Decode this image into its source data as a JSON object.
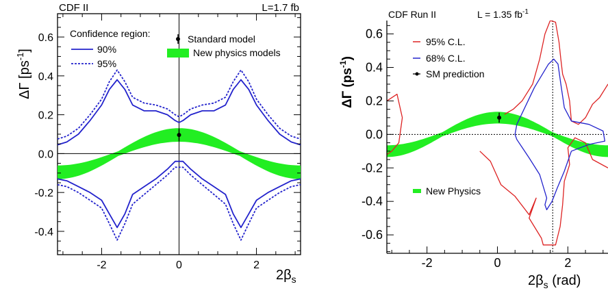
{
  "chart_data": [
    {
      "type": "line",
      "title": "CDF II",
      "luminosity": "L=1.7 fb",
      "xlabel": "2β",
      "xlabel_sub": "s",
      "ylabel": "ΔΓ [ps",
      "ylabel_sup": "-1",
      "ylabel_end": "]",
      "xlim": [
        -3.14,
        3.14
      ],
      "ylim": [
        -0.52,
        0.72
      ],
      "xticks": [
        -2,
        0,
        2
      ],
      "xtick_labels": [
        "-2",
        "0",
        "2"
      ],
      "yticks": [
        -0.4,
        -0.2,
        0.0,
        0.2,
        0.4,
        0.6
      ],
      "ytick_labels": [
        "-0.4",
        "-0.2",
        "0.0",
        "0.2",
        "0.4",
        "0.6"
      ],
      "legend": {
        "title": "Confidence region:",
        "items": [
          "90%",
          "95%"
        ],
        "extra_items": [
          "Standard model",
          "New physics models"
        ]
      },
      "sm_point": {
        "x": 0.0,
        "y": 0.096,
        "err": 0.03
      },
      "series": [
        {
          "name": "90%",
          "style": "solid",
          "color": "#2222cc",
          "x": [
            -3.14,
            -2.9,
            -2.6,
            -2.3,
            -2.0,
            -1.8,
            -1.6,
            -1.4,
            -1.2,
            -0.9,
            -0.6,
            -0.3,
            -0.1,
            0.0,
            0.1,
            0.3,
            0.6,
            0.9,
            1.2,
            1.4,
            1.6,
            1.8,
            2.0,
            2.3,
            2.6,
            2.9,
            3.14
          ],
          "upper": [
            0.045,
            0.06,
            0.1,
            0.17,
            0.25,
            0.33,
            0.38,
            0.33,
            0.25,
            0.22,
            0.22,
            0.2,
            0.17,
            0.16,
            0.17,
            0.2,
            0.22,
            0.22,
            0.25,
            0.33,
            0.38,
            0.33,
            0.25,
            0.17,
            0.1,
            0.06,
            0.045
          ],
          "lower": [
            -0.13,
            -0.14,
            -0.17,
            -0.2,
            -0.24,
            -0.31,
            -0.38,
            -0.31,
            -0.21,
            -0.17,
            -0.13,
            -0.08,
            -0.04,
            -0.04,
            -0.04,
            -0.08,
            -0.13,
            -0.17,
            -0.21,
            -0.31,
            -0.38,
            -0.31,
            -0.24,
            -0.2,
            -0.17,
            -0.14,
            -0.13
          ]
        },
        {
          "name": "95%",
          "style": "dotted",
          "color": "#2222cc",
          "x": [
            -3.14,
            -2.9,
            -2.6,
            -2.3,
            -2.0,
            -1.8,
            -1.6,
            -1.4,
            -1.2,
            -0.9,
            -0.6,
            -0.3,
            -0.1,
            0.0,
            0.1,
            0.3,
            0.6,
            0.9,
            1.2,
            1.4,
            1.6,
            1.8,
            2.0,
            2.3,
            2.6,
            2.9,
            3.14
          ],
          "upper": [
            0.075,
            0.09,
            0.13,
            0.2,
            0.28,
            0.37,
            0.43,
            0.37,
            0.29,
            0.26,
            0.25,
            0.23,
            0.2,
            0.19,
            0.2,
            0.23,
            0.25,
            0.26,
            0.29,
            0.37,
            0.43,
            0.37,
            0.28,
            0.2,
            0.13,
            0.09,
            0.075
          ],
          "lower": [
            -0.16,
            -0.17,
            -0.2,
            -0.24,
            -0.28,
            -0.36,
            -0.445,
            -0.36,
            -0.26,
            -0.21,
            -0.16,
            -0.11,
            -0.07,
            -0.07,
            -0.07,
            -0.11,
            -0.16,
            -0.21,
            -0.26,
            -0.36,
            -0.445,
            -0.36,
            -0.28,
            -0.24,
            -0.2,
            -0.17,
            -0.16
          ]
        }
      ],
      "band": {
        "name": "New physics models",
        "color": "#22ee22",
        "amplitude": 0.096,
        "halfwidth": 0.035
      }
    },
    {
      "type": "line",
      "title": "CDF Run II",
      "luminosity": "L = 1.35 fb",
      "luminosity_sup": "-1",
      "xlabel": "2β",
      "xlabel_sub": "s",
      "xlabel_end": " (rad)",
      "ylabel": "ΔΓ (ps",
      "ylabel_sup": "-1",
      "ylabel_end": ")",
      "xlim": [
        -3.14,
        3.14
      ],
      "ylim": [
        -0.71,
        0.68
      ],
      "xticks": [
        -2,
        0,
        2
      ],
      "xtick_labels": [
        "-2",
        "0",
        "2"
      ],
      "yticks": [
        -0.6,
        -0.4,
        -0.2,
        0.0,
        0.2,
        0.4,
        0.6
      ],
      "ytick_labels": [
        "-0.6",
        "-0.4",
        "-0.2",
        "0.0",
        "0.2",
        "0.4",
        "0.6"
      ],
      "legend": {
        "items": [
          "95% C.L.",
          "68% C.L.",
          "SM prediction",
          "New Physics"
        ]
      },
      "sm_point": {
        "x": 0.05,
        "y": 0.1,
        "err": 0.03
      },
      "reference_lines": {
        "x": 1.57,
        "y": 0.0
      },
      "series": [
        {
          "name": "95% C.L.",
          "color": "#dd2222",
          "style": "solid",
          "x": [
            -3.14,
            -2.85,
            -2.7,
            -2.8,
            -3.0,
            -3.14
          ],
          "y": [
            0.2,
            0.24,
            0.1,
            -0.05,
            -0.1,
            -0.12
          ]
        },
        {
          "name": "95% C.L.",
          "color": "#dd2222",
          "style": "solid",
          "x": [
            -0.5,
            -0.2,
            0.1,
            0.5,
            0.9,
            1.1,
            0.9,
            1.25,
            1.3,
            1.65,
            1.78,
            1.85,
            1.9,
            2.05,
            2.0,
            2.2,
            2.5,
            2.7,
            3.14
          ],
          "y": [
            -0.1,
            -0.16,
            -0.3,
            -0.37,
            -0.48,
            -0.38,
            -0.5,
            -0.62,
            -0.66,
            -0.66,
            -0.55,
            -0.42,
            -0.28,
            -0.18,
            -0.08,
            -0.02,
            -0.05,
            -0.15,
            -0.2
          ]
        },
        {
          "name": "95% C.L.",
          "color": "#dd2222",
          "style": "solid",
          "x": [
            3.14,
            2.9,
            2.7,
            2.5,
            2.3,
            2.1,
            2.05,
            1.95,
            1.85,
            1.8,
            1.75,
            1.65,
            1.5,
            1.35,
            1.2,
            1.0,
            0.7,
            0.45,
            0.2
          ],
          "y": [
            0.3,
            0.22,
            0.18,
            0.1,
            0.06,
            0.08,
            0.2,
            0.3,
            0.36,
            0.45,
            0.55,
            0.67,
            0.68,
            0.6,
            0.45,
            0.3,
            0.2,
            0.15,
            0.12
          ]
        },
        {
          "name": "68% C.L.",
          "color": "#2222cc",
          "style": "solid",
          "x": [
            0.55,
            0.5,
            0.55,
            0.9,
            1.2,
            1.4,
            1.35,
            1.4,
            1.55,
            1.7,
            1.9,
            2.1,
            2.6,
            3.05,
            3.0,
            2.6,
            2.1,
            1.9,
            1.8,
            1.72,
            1.6,
            1.45,
            1.05,
            0.55
          ],
          "y": [
            0.06,
            0.0,
            -0.03,
            -0.14,
            -0.24,
            -0.38,
            -0.42,
            -0.45,
            -0.4,
            -0.32,
            -0.22,
            -0.1,
            -0.06,
            -0.04,
            0.02,
            0.06,
            0.08,
            0.16,
            0.3,
            0.42,
            0.45,
            0.42,
            0.28,
            0.06
          ]
        }
      ],
      "band": {
        "name": "New Physics",
        "color": "#22ee22",
        "amplitude": 0.1,
        "halfwidth": 0.035
      }
    }
  ]
}
